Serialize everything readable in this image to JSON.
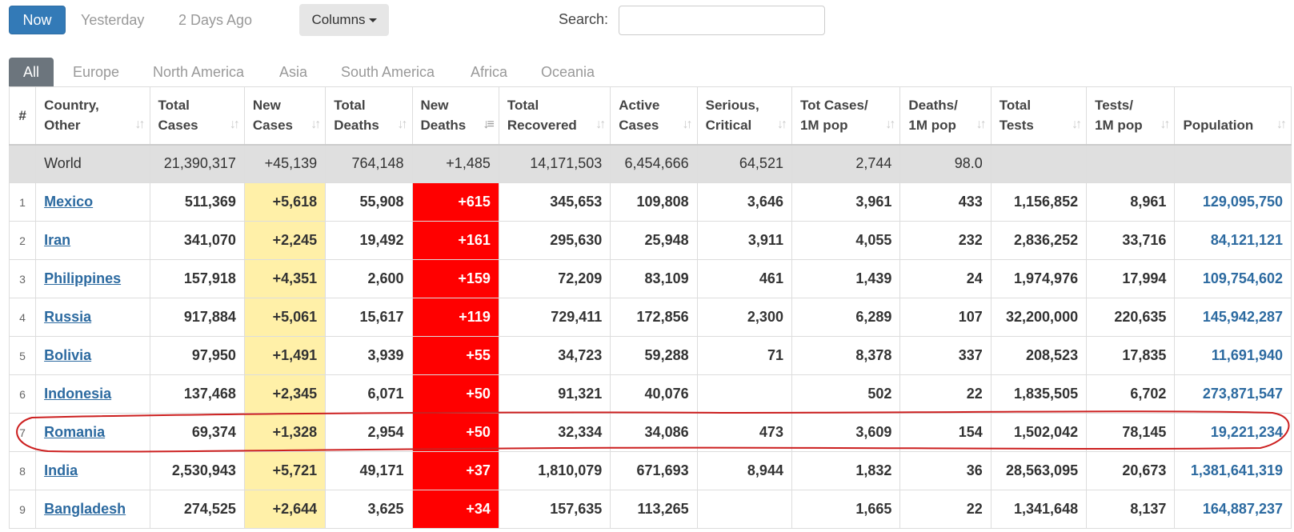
{
  "toolbar": {
    "now_label": "Now",
    "yesterday_label": "Yesterday",
    "two_days_label": "2 Days Ago",
    "columns_label": "Columns",
    "search_label": "Search:",
    "search_value": "",
    "search_placeholder": ""
  },
  "tabs": [
    "All",
    "Europe",
    "North America",
    "Asia",
    "South America",
    "Africa",
    "Oceania"
  ],
  "active_tab": "All",
  "columns": [
    {
      "l1": "#",
      "l2": ""
    },
    {
      "l1": "Country,",
      "l2": "Other"
    },
    {
      "l1": "Total",
      "l2": "Cases"
    },
    {
      "l1": "New",
      "l2": "Cases"
    },
    {
      "l1": "Total",
      "l2": "Deaths"
    },
    {
      "l1": "New",
      "l2": "Deaths"
    },
    {
      "l1": "Total",
      "l2": "Recovered"
    },
    {
      "l1": "Active",
      "l2": "Cases"
    },
    {
      "l1": "Serious,",
      "l2": "Critical"
    },
    {
      "l1": "Tot Cases/",
      "l2": "1M pop"
    },
    {
      "l1": "Deaths/",
      "l2": "1M pop"
    },
    {
      "l1": "Total",
      "l2": "Tests"
    },
    {
      "l1": "Tests/",
      "l2": "1M pop"
    },
    {
      "l1": "",
      "l2": "Population"
    }
  ],
  "sorted_column": "New Deaths",
  "world": {
    "country": "World",
    "total_cases": "21,390,317",
    "new_cases": "+45,139",
    "total_deaths": "764,148",
    "new_deaths": "+1,485",
    "total_recovered": "14,171,503",
    "active_cases": "6,454,666",
    "serious_critical": "64,521",
    "cases_per_1m": "2,744",
    "deaths_per_1m": "98.0",
    "total_tests": "",
    "tests_per_1m": "",
    "population": ""
  },
  "rows": [
    {
      "num": "1",
      "country": "Mexico",
      "total_cases": "511,369",
      "new_cases": "+5,618",
      "total_deaths": "55,908",
      "new_deaths": "+615",
      "total_recovered": "345,653",
      "active_cases": "109,808",
      "serious_critical": "3,646",
      "cases_per_1m": "3,961",
      "deaths_per_1m": "433",
      "total_tests": "1,156,852",
      "tests_per_1m": "8,961",
      "population": "129,095,750"
    },
    {
      "num": "2",
      "country": "Iran",
      "total_cases": "341,070",
      "new_cases": "+2,245",
      "total_deaths": "19,492",
      "new_deaths": "+161",
      "total_recovered": "295,630",
      "active_cases": "25,948",
      "serious_critical": "3,911",
      "cases_per_1m": "4,055",
      "deaths_per_1m": "232",
      "total_tests": "2,836,252",
      "tests_per_1m": "33,716",
      "population": "84,121,121"
    },
    {
      "num": "3",
      "country": "Philippines",
      "total_cases": "157,918",
      "new_cases": "+4,351",
      "total_deaths": "2,600",
      "new_deaths": "+159",
      "total_recovered": "72,209",
      "active_cases": "83,109",
      "serious_critical": "461",
      "cases_per_1m": "1,439",
      "deaths_per_1m": "24",
      "total_tests": "1,974,976",
      "tests_per_1m": "17,994",
      "population": "109,754,602"
    },
    {
      "num": "4",
      "country": "Russia",
      "total_cases": "917,884",
      "new_cases": "+5,061",
      "total_deaths": "15,617",
      "new_deaths": "+119",
      "total_recovered": "729,411",
      "active_cases": "172,856",
      "serious_critical": "2,300",
      "cases_per_1m": "6,289",
      "deaths_per_1m": "107",
      "total_tests": "32,200,000",
      "tests_per_1m": "220,635",
      "population": "145,942,287"
    },
    {
      "num": "5",
      "country": "Bolivia",
      "total_cases": "97,950",
      "new_cases": "+1,491",
      "total_deaths": "3,939",
      "new_deaths": "+55",
      "total_recovered": "34,723",
      "active_cases": "59,288",
      "serious_critical": "71",
      "cases_per_1m": "8,378",
      "deaths_per_1m": "337",
      "total_tests": "208,523",
      "tests_per_1m": "17,835",
      "population": "11,691,940"
    },
    {
      "num": "6",
      "country": "Indonesia",
      "total_cases": "137,468",
      "new_cases": "+2,345",
      "total_deaths": "6,071",
      "new_deaths": "+50",
      "total_recovered": "91,321",
      "active_cases": "40,076",
      "serious_critical": "",
      "cases_per_1m": "502",
      "deaths_per_1m": "22",
      "total_tests": "1,835,505",
      "tests_per_1m": "6,702",
      "population": "273,871,547"
    },
    {
      "num": "7",
      "country": "Romania",
      "total_cases": "69,374",
      "new_cases": "+1,328",
      "total_deaths": "2,954",
      "new_deaths": "+50",
      "total_recovered": "32,334",
      "active_cases": "34,086",
      "serious_critical": "473",
      "cases_per_1m": "3,609",
      "deaths_per_1m": "154",
      "total_tests": "1,502,042",
      "tests_per_1m": "78,145",
      "population": "19,221,234"
    },
    {
      "num": "8",
      "country": "India",
      "total_cases": "2,530,943",
      "new_cases": "+5,721",
      "total_deaths": "49,171",
      "new_deaths": "+37",
      "total_recovered": "1,810,079",
      "active_cases": "671,693",
      "serious_critical": "8,944",
      "cases_per_1m": "1,832",
      "deaths_per_1m": "36",
      "total_tests": "28,563,095",
      "tests_per_1m": "20,673",
      "population": "1,381,641,319"
    },
    {
      "num": "9",
      "country": "Bangladesh",
      "total_cases": "274,525",
      "new_cases": "+2,644",
      "total_deaths": "3,625",
      "new_deaths": "+34",
      "total_recovered": "157,635",
      "active_cases": "113,265",
      "serious_critical": "",
      "cases_per_1m": "1,665",
      "deaths_per_1m": "22",
      "total_tests": "1,341,648",
      "tests_per_1m": "8,137",
      "population": "164,887,237"
    }
  ],
  "colors": {
    "accent": "#337ab7",
    "new_cases_bg": "#fff0a8",
    "new_deaths_bg": "#ff0000",
    "link": "#2c6aa0",
    "annotation": "#cc1f1f"
  },
  "annotation": {
    "highlighted_country": "Romania"
  }
}
